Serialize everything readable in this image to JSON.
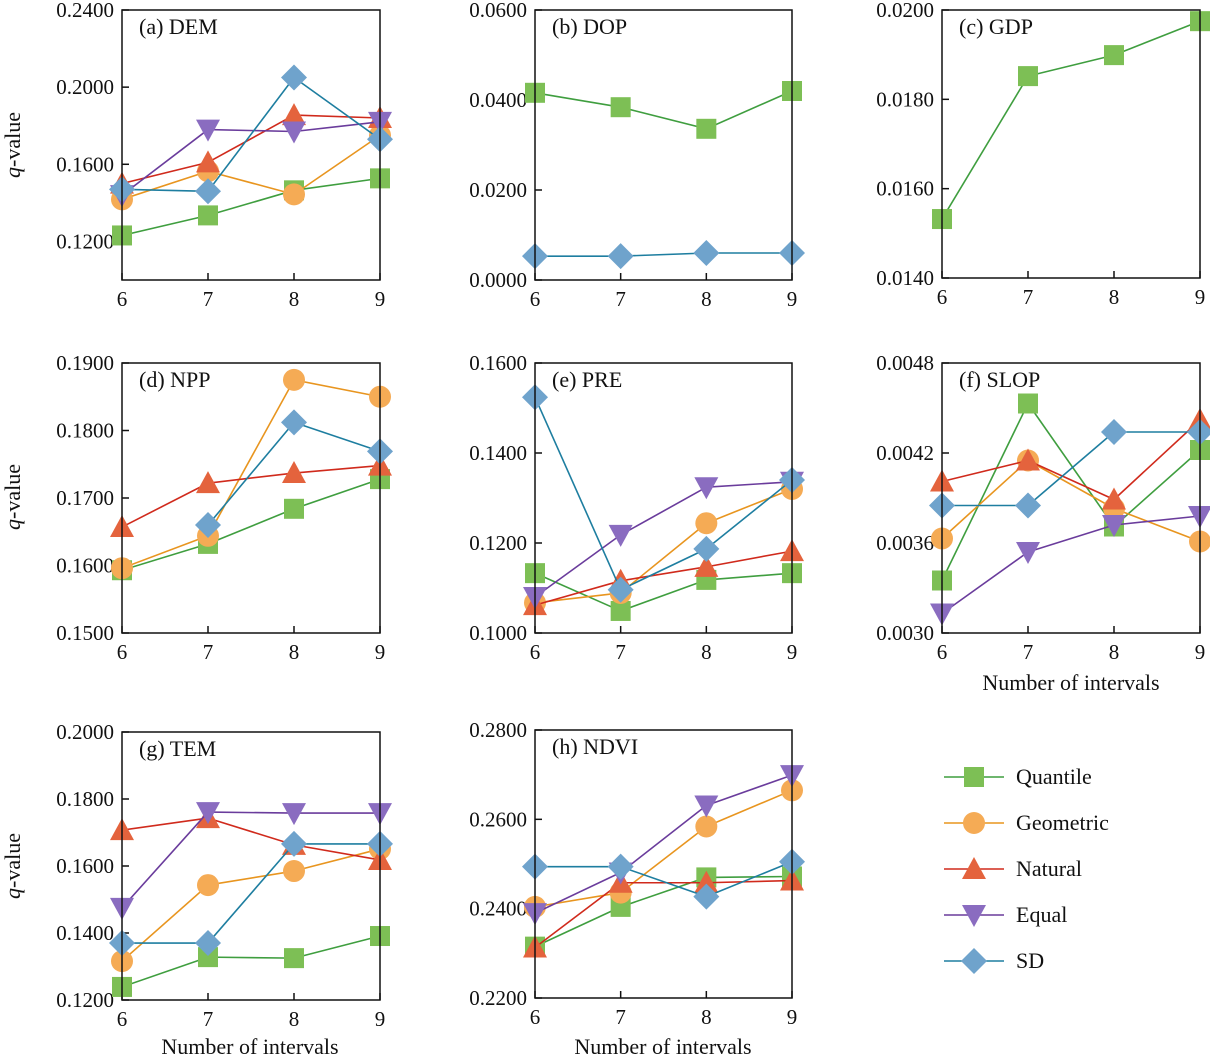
{
  "chart_data": {
    "type": "line",
    "x": [
      6,
      7,
      8,
      9
    ],
    "xlabel": "Number of intervals",
    "ylabel_italic": "q",
    "ylabel_rest": "-value",
    "xtick_labels": [
      "6",
      "7",
      "8",
      "9"
    ],
    "legend": {
      "placement": "bottom-right",
      "entries": [
        {
          "name": "Quantile",
          "marker": "square",
          "marker_color": "#7dbf55",
          "line_color": "#3f9e3f"
        },
        {
          "name": "Geometric",
          "marker": "circle",
          "marker_color": "#f5ab55",
          "line_color": "#e8951f"
        },
        {
          "name": "Natural",
          "marker": "triangle-up",
          "marker_color": "#e4633d",
          "line_color": "#d02a1c"
        },
        {
          "name": "Equal",
          "marker": "triangle-down",
          "marker_color": "#8a6cc0",
          "line_color": "#6a3c9c"
        },
        {
          "name": "SD",
          "marker": "diamond",
          "marker_color": "#6fa3cc",
          "line_color": "#1e7ea0"
        }
      ]
    },
    "panels": [
      {
        "title": "(a) DEM",
        "ylim": [
          0.1,
          0.24
        ],
        "yticks": [
          0.12,
          0.16,
          0.2,
          0.24
        ],
        "ytick_labels": [
          "0.1200",
          "0.1600",
          "0.2000",
          "0.2400"
        ],
        "series": {
          "Quantile": [
            0.1231,
            0.1335,
            0.1465,
            0.1527
          ],
          "Geometric": [
            0.1418,
            0.1564,
            0.1444,
            0.175
          ],
          "Natural": [
            0.15,
            0.161,
            0.1855,
            0.184
          ],
          "Equal": [
            0.144,
            0.178,
            0.177,
            0.182
          ],
          "SD": [
            0.147,
            0.146,
            0.205,
            0.173
          ]
        }
      },
      {
        "title": "(b) DOP",
        "ylim": [
          0.0,
          0.06
        ],
        "yticks": [
          0.0,
          0.02,
          0.04,
          0.06
        ],
        "ytick_labels": [
          "0.0000",
          "0.0200",
          "0.0400",
          "0.0600"
        ],
        "series": {
          "Quantile": [
            0.0416,
            0.0384,
            0.0336,
            0.042
          ],
          "SD": [
            0.0053,
            0.0053,
            0.006,
            0.006
          ]
        }
      },
      {
        "title": "(c) GDP",
        "ylim": [
          0.014,
          0.02
        ],
        "yticks": [
          0.014,
          0.016,
          0.018,
          0.02
        ],
        "ytick_labels": [
          "0.0140",
          "0.0160",
          "0.0180",
          "0.0200"
        ],
        "series": {
          "Quantile": [
            0.01532,
            0.01852,
            0.01899,
            0.01975
          ]
        }
      },
      {
        "title": "(d) NPP",
        "ylim": [
          0.15,
          0.19
        ],
        "yticks": [
          0.15,
          0.16,
          0.17,
          0.18,
          0.19
        ],
        "ytick_labels": [
          "0.1500",
          "0.1600",
          "0.1700",
          "0.1800",
          "0.1900"
        ],
        "series": {
          "Quantile": [
            0.1593,
            0.1632,
            0.1684,
            0.1728
          ],
          "Geometric": [
            0.1596,
            0.1644,
            0.1875,
            0.185
          ],
          "Natural": [
            0.1657,
            0.1722,
            0.1737,
            0.1748
          ],
          "SD": [
            null,
            0.166,
            0.1812,
            0.1769
          ]
        }
      },
      {
        "title": "(e) PRE",
        "ylim": [
          0.1,
          0.16
        ],
        "yticks": [
          0.1,
          0.12,
          0.14,
          0.16
        ],
        "ytick_labels": [
          "0.1000",
          "0.1200",
          "0.1400",
          "0.1600"
        ],
        "series": {
          "Quantile": [
            0.1133,
            0.1049,
            0.1118,
            0.1133
          ],
          "Geometric": [
            0.1067,
            0.1089,
            0.1244,
            0.132
          ],
          "Natural": [
            0.1062,
            0.1116,
            0.1147,
            0.1182
          ],
          "Equal": [
            0.108,
            0.1218,
            0.1324,
            0.1336
          ],
          "SD": [
            0.1524,
            0.1096,
            0.1187,
            0.134
          ]
        }
      },
      {
        "title": "(f) SLOP",
        "ylim": [
          0.003,
          0.0048
        ],
        "yticks": [
          0.003,
          0.0036,
          0.0042,
          0.0048
        ],
        "ytick_labels": [
          "0.0030",
          "0.0036",
          "0.0042",
          "0.0048"
        ],
        "series": {
          "Quantile": [
            0.00335,
            0.00453,
            0.00371,
            0.00422
          ],
          "Geometric": [
            0.00363,
            0.00415,
            0.00383,
            0.00361
          ],
          "Natural": [
            0.00401,
            0.00415,
            0.00389,
            0.00442
          ],
          "Equal": [
            0.00313,
            0.00354,
            0.00372,
            0.00378
          ],
          "SD": [
            0.00385,
            0.00385,
            0.00434,
            0.00434
          ]
        }
      },
      {
        "title": "(g) TEM",
        "ylim": [
          0.12,
          0.2
        ],
        "yticks": [
          0.12,
          0.14,
          0.16,
          0.18,
          0.2
        ],
        "ytick_labels": [
          "0.1200",
          "0.1400",
          "0.1600",
          "0.1800",
          "0.2000"
        ],
        "series": {
          "Quantile": [
            0.1239,
            0.1328,
            0.1325,
            0.1391
          ],
          "Geometric": [
            0.1316,
            0.1543,
            0.1585,
            0.1651
          ],
          "Natural": [
            0.1707,
            0.1743,
            0.1663,
            0.1618
          ],
          "Equal": [
            0.1475,
            0.1761,
            0.1758,
            0.1758
          ],
          "SD": [
            0.137,
            0.137,
            0.1666,
            0.1666
          ]
        }
      },
      {
        "title": "(h) NDVI",
        "ylim": [
          0.22,
          0.28
        ],
        "yticks": [
          0.22,
          0.24,
          0.26,
          0.28
        ],
        "ytick_labels": [
          "0.2200",
          "0.2400",
          "0.2600",
          "0.2800"
        ],
        "series": {
          "Quantile": [
            0.2315,
            0.2404,
            0.247,
            0.2472
          ],
          "Geometric": [
            0.2404,
            0.2436,
            0.2584,
            0.2665
          ],
          "Natural": [
            0.2313,
            0.2458,
            0.2458,
            0.2463
          ],
          "Equal": [
            0.239,
            0.2481,
            0.2631,
            0.2699
          ],
          "SD": [
            0.2494,
            0.2494,
            0.2427,
            0.2505
          ]
        }
      }
    ]
  }
}
